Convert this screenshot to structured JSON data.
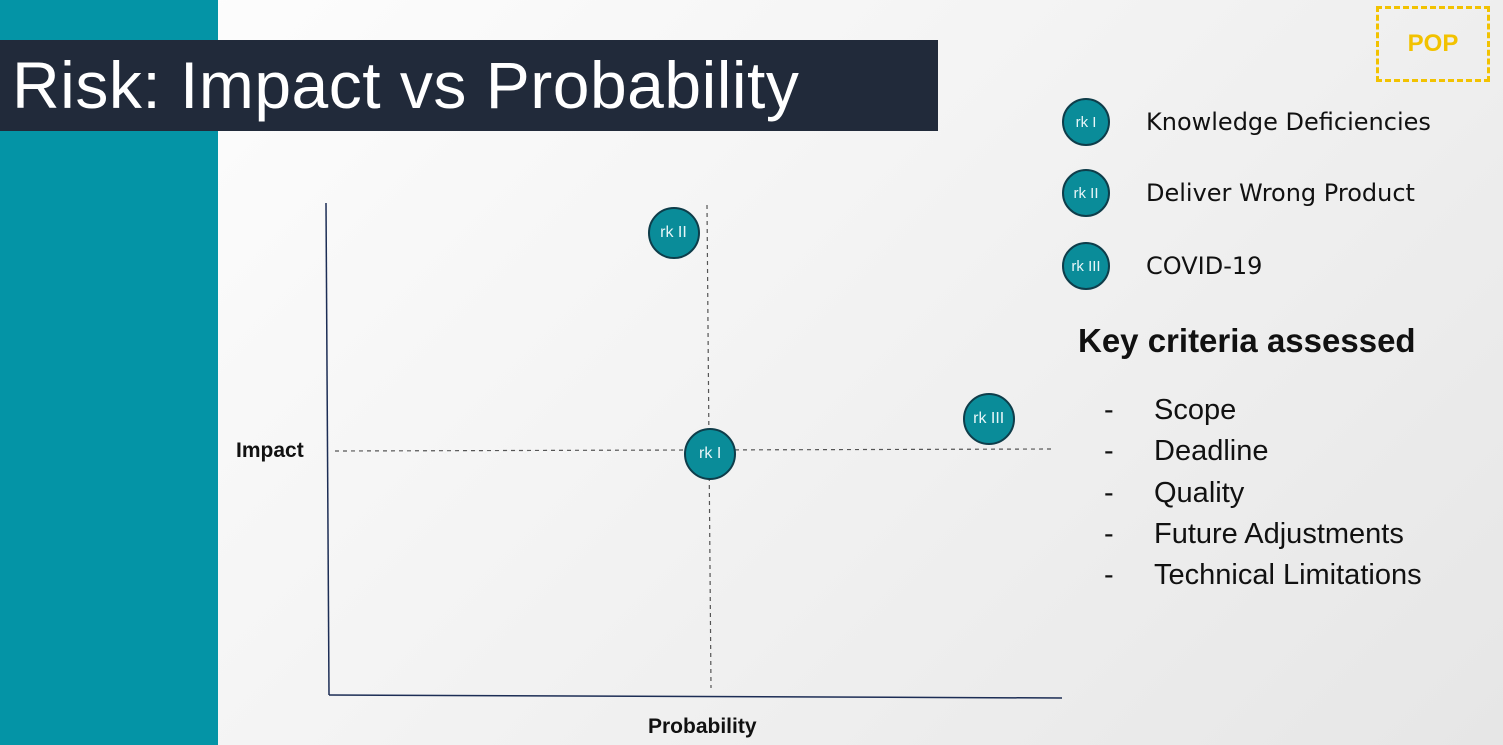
{
  "slide": {
    "title": "Risk: Impact vs Probability",
    "badge": "POP"
  },
  "matrix": {
    "y_axis_label": "Impact",
    "x_axis_label": "Probability",
    "points": [
      {
        "label": "rk II",
        "probability": 0.47,
        "impact": 0.94
      },
      {
        "label": "rk III",
        "probability": 0.9,
        "impact": 0.56
      },
      {
        "label": "rk I",
        "probability": 0.52,
        "impact": 0.49
      }
    ]
  },
  "legend": [
    {
      "marker": "rk I",
      "text": "Knowledge Deficiencies"
    },
    {
      "marker": "rk II",
      "text": "Deliver Wrong Product"
    },
    {
      "marker": "rk III",
      "text": "COVID-19"
    }
  ],
  "criteria": {
    "heading": "Key criteria assessed",
    "bullet": "-",
    "items": [
      "Scope",
      "Deadline",
      "Quality",
      "Future Adjustments",
      "Technical Limitations"
    ]
  },
  "colors": {
    "side_bar": "#0494a6",
    "title_bg": "#212a3a",
    "badge": "#f2c200",
    "marker_fill": "#0a8c99"
  }
}
